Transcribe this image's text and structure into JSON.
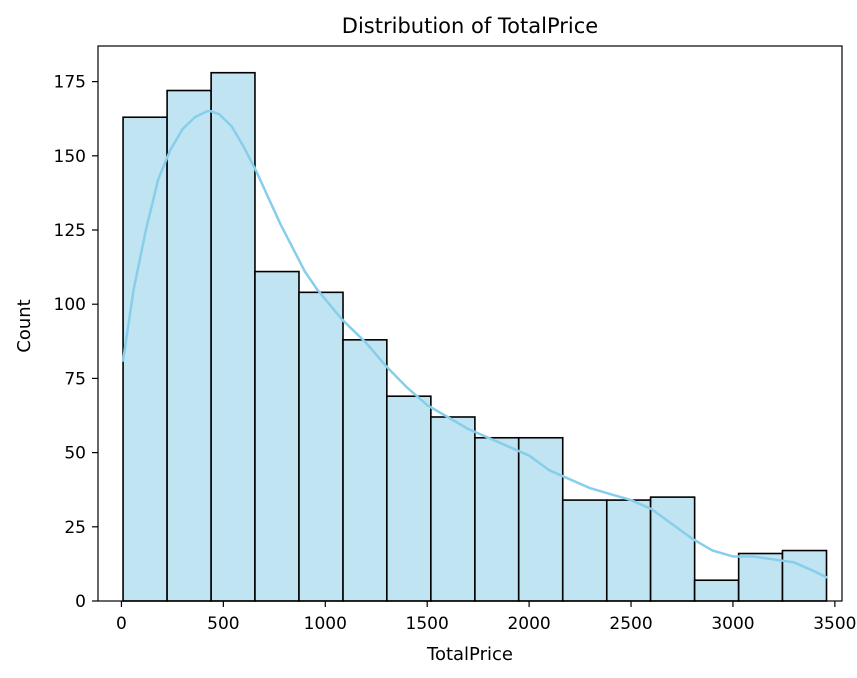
{
  "chart_data": {
    "type": "bar",
    "title": "Distribution of TotalPrice",
    "xlabel": "TotalPrice",
    "ylabel": "Count",
    "xlim": [
      -115,
      3535
    ],
    "ylim": [
      0,
      187
    ],
    "x_ticks": [
      0,
      500,
      1000,
      1500,
      2000,
      2500,
      3000,
      3500
    ],
    "y_ticks": [
      0,
      25,
      50,
      75,
      100,
      125,
      150,
      175
    ],
    "grid": false,
    "bar_fill": "#c1e4f3",
    "bar_edge": "#000000",
    "kde_color": "#87ceeb",
    "bins": [
      {
        "x0": 8,
        "x1": 224,
        "count": 163
      },
      {
        "x0": 224,
        "x1": 440,
        "count": 172
      },
      {
        "x0": 440,
        "x1": 655,
        "count": 178
      },
      {
        "x0": 655,
        "x1": 871,
        "count": 111
      },
      {
        "x0": 871,
        "x1": 1087,
        "count": 104
      },
      {
        "x0": 1087,
        "x1": 1302,
        "count": 88
      },
      {
        "x0": 1302,
        "x1": 1518,
        "count": 69
      },
      {
        "x0": 1518,
        "x1": 1734,
        "count": 62
      },
      {
        "x0": 1734,
        "x1": 1949,
        "count": 55
      },
      {
        "x0": 1949,
        "x1": 2165,
        "count": 55
      },
      {
        "x0": 2165,
        "x1": 2381,
        "count": 34
      },
      {
        "x0": 2381,
        "x1": 2596,
        "count": 34
      },
      {
        "x0": 2596,
        "x1": 2812,
        "count": 35
      },
      {
        "x0": 2812,
        "x1": 3028,
        "count": 7
      },
      {
        "x0": 3028,
        "x1": 3243,
        "count": 16
      },
      {
        "x0": 3243,
        "x1": 3459,
        "count": 17
      }
    ],
    "kde": {
      "x": [
        8,
        60,
        120,
        180,
        240,
        300,
        360,
        420,
        440,
        480,
        540,
        600,
        660,
        720,
        780,
        840,
        900,
        960,
        1020,
        1080,
        1140,
        1200,
        1300,
        1400,
        1500,
        1600,
        1700,
        1800,
        1900,
        2000,
        2100,
        2200,
        2300,
        2400,
        2500,
        2600,
        2700,
        2800,
        2900,
        3000,
        3100,
        3200,
        3300,
        3400,
        3459
      ],
      "y": [
        81,
        105,
        125,
        142,
        152,
        159,
        163,
        165,
        165,
        164,
        160,
        153,
        145,
        136,
        127,
        119,
        111,
        105,
        100,
        95,
        91,
        87,
        79,
        72,
        66,
        62,
        58,
        55,
        52,
        49,
        44,
        41,
        38,
        36,
        34,
        31,
        26,
        21,
        17,
        15,
        15,
        14,
        13,
        10,
        8
      ]
    }
  }
}
